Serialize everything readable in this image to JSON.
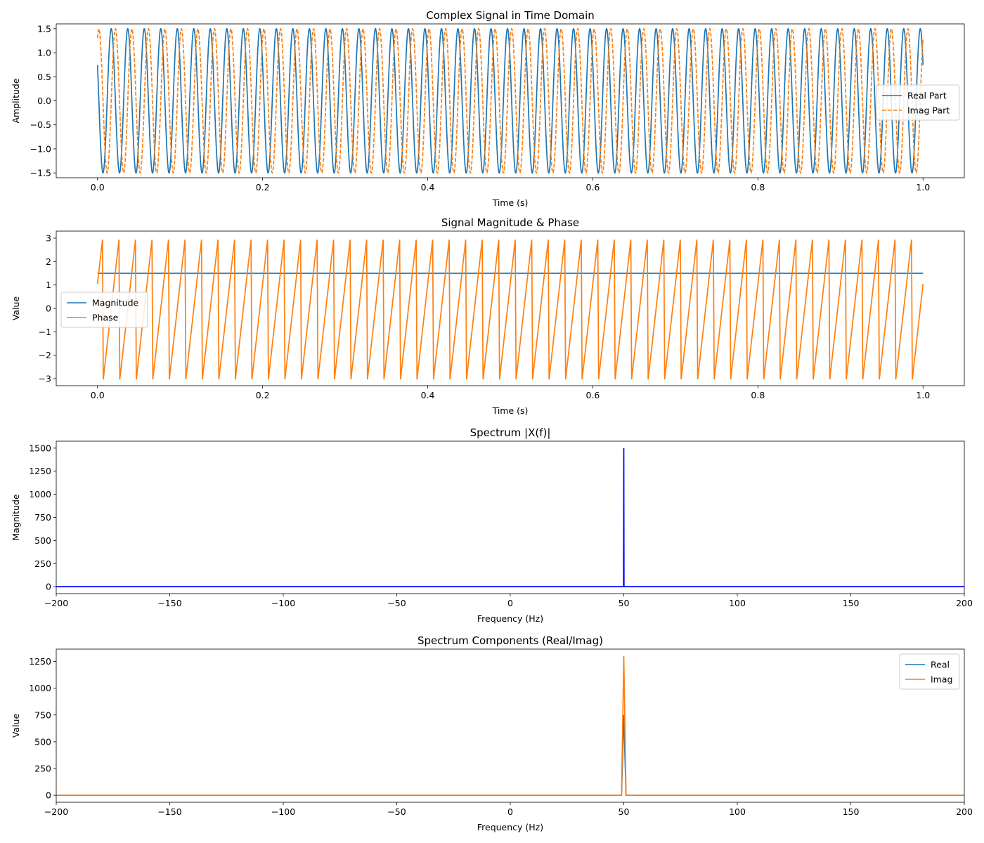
{
  "chart_data": [
    {
      "type": "line",
      "title": "Complex Signal in Time Domain",
      "xlabel": "Time (s)",
      "ylabel": "Amplitude",
      "xlim": [
        -0.05,
        1.05
      ],
      "ylim": [
        -1.6,
        1.6
      ],
      "xticks": [
        "0.0",
        "0.2",
        "0.4",
        "0.6",
        "0.8",
        "1.0"
      ],
      "xtick_values": [
        0,
        0.2,
        0.4,
        0.6,
        0.8,
        1.0
      ],
      "yticks": [
        "−1.5",
        "−1.0",
        "−0.5",
        "0.0",
        "0.5",
        "1.0",
        "1.5"
      ],
      "ytick_values": [
        -1.5,
        -1.0,
        -0.5,
        0.0,
        0.5,
        1.0,
        1.5
      ],
      "legend_position": "center-right",
      "signal": {
        "amplitude": 1.5,
        "frequency_hz": 50,
        "phase_rad": 1.05,
        "t_start": 0,
        "t_end": 1.0
      },
      "series": [
        {
          "name": "Real Part",
          "expression": "1.5*cos(2*pi*50*t + 1.05)",
          "color": "#1f77b4",
          "style": "solid"
        },
        {
          "name": "Imag Part",
          "expression": "1.5*sin(2*pi*50*t + 1.05)",
          "color": "#ff7f0e",
          "style": "dashed"
        }
      ]
    },
    {
      "type": "line",
      "title": "Signal Magnitude & Phase",
      "xlabel": "Time (s)",
      "ylabel": "Value",
      "xlim": [
        -0.05,
        1.05
      ],
      "ylim": [
        -3.3,
        3.3
      ],
      "xticks": [
        "0.0",
        "0.2",
        "0.4",
        "0.6",
        "0.8",
        "1.0"
      ],
      "xtick_values": [
        0,
        0.2,
        0.4,
        0.6,
        0.8,
        1.0
      ],
      "yticks": [
        "−3",
        "−2",
        "−1",
        "0",
        "1",
        "2",
        "3"
      ],
      "ytick_values": [
        -3,
        -2,
        -1,
        0,
        1,
        2,
        3
      ],
      "legend_position": "center-left",
      "series": [
        {
          "name": "Magnitude",
          "expression": "constant 1.5",
          "value": 1.5,
          "color": "#1f77b4",
          "style": "solid"
        },
        {
          "name": "Phase",
          "expression": "wrapped angle of 2*pi*50*t + 1.05 in [-pi, pi]",
          "color": "#ff7f0e",
          "style": "solid"
        }
      ]
    },
    {
      "type": "line",
      "title": "Spectrum |X(f)|",
      "xlabel": "Frequency (Hz)",
      "ylabel": "Magnitude",
      "xlim": [
        -200,
        200
      ],
      "ylim": [
        -75,
        1575
      ],
      "xticks": [
        "−200",
        "−150",
        "−100",
        "−50",
        "0",
        "50",
        "100",
        "150",
        "200"
      ],
      "xtick_values": [
        -200,
        -150,
        -100,
        -50,
        0,
        50,
        100,
        150,
        200
      ],
      "yticks": [
        "0",
        "250",
        "500",
        "750",
        "1000",
        "1250",
        "1500"
      ],
      "ytick_values": [
        0,
        250,
        500,
        750,
        1000,
        1250,
        1500
      ],
      "series": [
        {
          "name": "|X(f)|",
          "color": "#0000ff",
          "x": [
            -200,
            49.9,
            50,
            50.1,
            200
          ],
          "y": [
            0,
            0,
            1500,
            0,
            0
          ]
        }
      ]
    },
    {
      "type": "line",
      "title": "Spectrum Components (Real/Imag)",
      "xlabel": "Frequency (Hz)",
      "ylabel": "Value",
      "xlim": [
        -200,
        200
      ],
      "ylim": [
        -65,
        1365
      ],
      "xticks": [
        "−200",
        "−150",
        "−100",
        "−50",
        "0",
        "50",
        "100",
        "150",
        "200"
      ],
      "xtick_values": [
        -200,
        -150,
        -100,
        -50,
        0,
        50,
        100,
        150,
        200
      ],
      "yticks": [
        "0",
        "250",
        "500",
        "750",
        "1000",
        "1250"
      ],
      "ytick_values": [
        0,
        250,
        500,
        750,
        1000,
        1250
      ],
      "legend_position": "top-right",
      "series": [
        {
          "name": "Real",
          "color": "#1f77b4",
          "x": [
            -200,
            49,
            50,
            51,
            200
          ],
          "y": [
            0,
            0,
            750,
            0,
            0
          ]
        },
        {
          "name": "Imag",
          "color": "#ff7f0e",
          "x": [
            -200,
            49,
            50,
            51,
            200
          ],
          "y": [
            0,
            0,
            1300,
            0,
            0
          ]
        }
      ]
    }
  ]
}
